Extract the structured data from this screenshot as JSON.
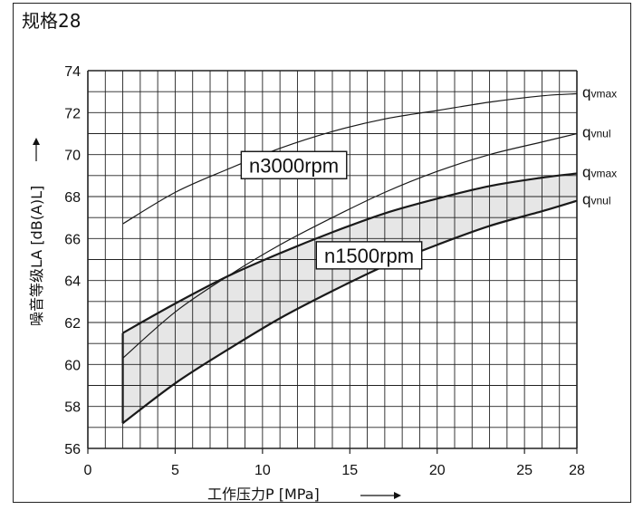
{
  "title": "规格28",
  "chart_data": {
    "type": "line",
    "title": "规格28",
    "xlabel": "工作压力P [MPa]",
    "ylabel": "噪音等级LA [dB(A)L]",
    "xlim": [
      0,
      28
    ],
    "ylim": [
      56,
      74
    ],
    "x_ticks": [
      0,
      5,
      10,
      15,
      20,
      25,
      28
    ],
    "x_tick_labels": [
      "0",
      "5",
      "10",
      "15",
      "20",
      "25",
      "28"
    ],
    "y_ticks": [
      56,
      58,
      60,
      62,
      64,
      66,
      68,
      70,
      72,
      74
    ],
    "y_tick_labels": [
      "56",
      "58",
      "60",
      "62",
      "64",
      "66",
      "68",
      "70",
      "72",
      "74"
    ],
    "grid": true,
    "series": [
      {
        "name": "n3000rpm qvmax",
        "group": "n3000rpm",
        "end_label": "qvmax",
        "x": [
          2,
          5,
          8,
          11,
          14,
          17,
          20,
          23,
          26,
          28
        ],
        "values": [
          66.7,
          68.2,
          69.3,
          70.3,
          71.1,
          71.7,
          72.1,
          72.5,
          72.8,
          72.9
        ]
      },
      {
        "name": "n3000rpm qvnul",
        "group": "n3000rpm",
        "end_label": "qvnul",
        "x": [
          2,
          5,
          8,
          11,
          14,
          17,
          20,
          23,
          26,
          28
        ],
        "values": [
          60.3,
          62.5,
          64.2,
          65.7,
          67.0,
          68.2,
          69.2,
          70.0,
          70.6,
          71.0
        ]
      },
      {
        "name": "n1500rpm qvmax",
        "group": "n1500rpm",
        "end_label": "qvmax",
        "x": [
          2,
          5,
          8,
          11,
          14,
          17,
          20,
          23,
          26,
          28
        ],
        "values": [
          61.5,
          62.9,
          64.2,
          65.3,
          66.3,
          67.2,
          67.9,
          68.5,
          68.9,
          69.1
        ]
      },
      {
        "name": "n1500rpm qvnul",
        "group": "n1500rpm",
        "end_label": "qvnul",
        "x": [
          2,
          5,
          8,
          11,
          14,
          17,
          20,
          23,
          26,
          28
        ],
        "values": [
          57.2,
          59.1,
          60.7,
          62.2,
          63.5,
          64.7,
          65.7,
          66.6,
          67.3,
          67.8
        ]
      }
    ],
    "annotations": [
      {
        "text": "n3000rpm",
        "at": [
          11.8,
          69.5
        ]
      },
      {
        "text": "n1500rpm",
        "at": [
          16.1,
          65.2
        ]
      }
    ],
    "band_fill": "#e6e6e6",
    "line_color": "#1a1a1a"
  }
}
